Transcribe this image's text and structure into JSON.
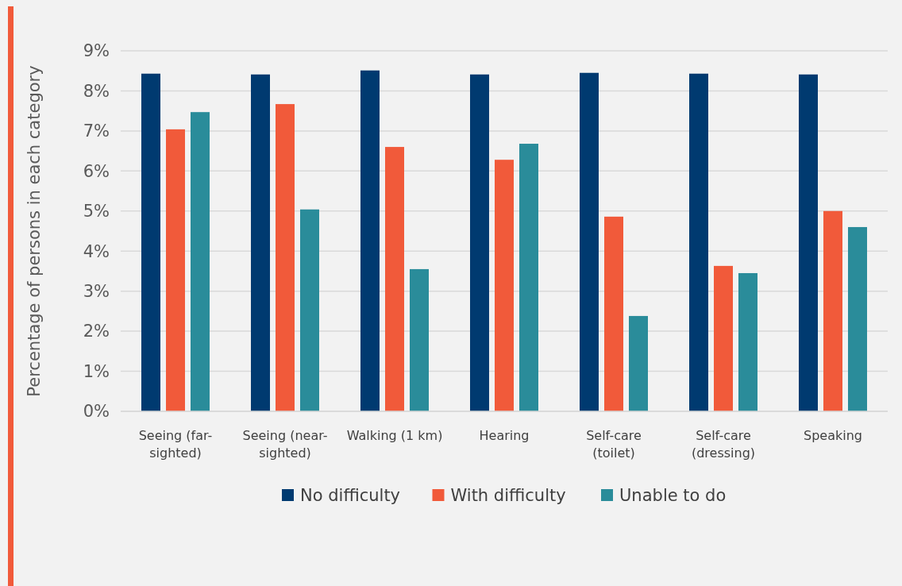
{
  "chart_data": {
    "type": "bar",
    "ylabel": "Percentage of persons in each category",
    "categories": [
      "Seeing (far-sighted)",
      "Seeing (near-sighted)",
      "Walking (1 km)",
      "Hearing",
      "Self-care (toilet)",
      "Self-care (dressing)",
      "Speaking"
    ],
    "series": [
      {
        "name": "No difficulty",
        "color": "#003a70",
        "values": [
          8.43,
          8.41,
          8.51,
          8.41,
          8.45,
          8.43,
          8.41
        ]
      },
      {
        "name": "With difficulty",
        "color": "#f15a3a",
        "values": [
          7.04,
          7.67,
          6.6,
          6.28,
          4.86,
          3.63,
          5.0
        ]
      },
      {
        "name": "Unable to do",
        "color": "#2a8c9a",
        "values": [
          7.47,
          5.04,
          3.55,
          6.68,
          2.38,
          3.45,
          4.6
        ]
      }
    ],
    "ylim": [
      0,
      9
    ],
    "yticks": [
      {
        "value": 0,
        "label": "0%"
      },
      {
        "value": 1,
        "label": "1%"
      },
      {
        "value": 2,
        "label": "2%"
      },
      {
        "value": 3,
        "label": "3%"
      },
      {
        "value": 4,
        "label": "4%"
      },
      {
        "value": 5,
        "label": "5%"
      },
      {
        "value": 6,
        "label": "6%"
      },
      {
        "value": 7,
        "label": "7%"
      },
      {
        "value": 8,
        "label": "8%"
      },
      {
        "value": 9,
        "label": "9%"
      }
    ],
    "grid": "y",
    "legend": "bottom"
  }
}
